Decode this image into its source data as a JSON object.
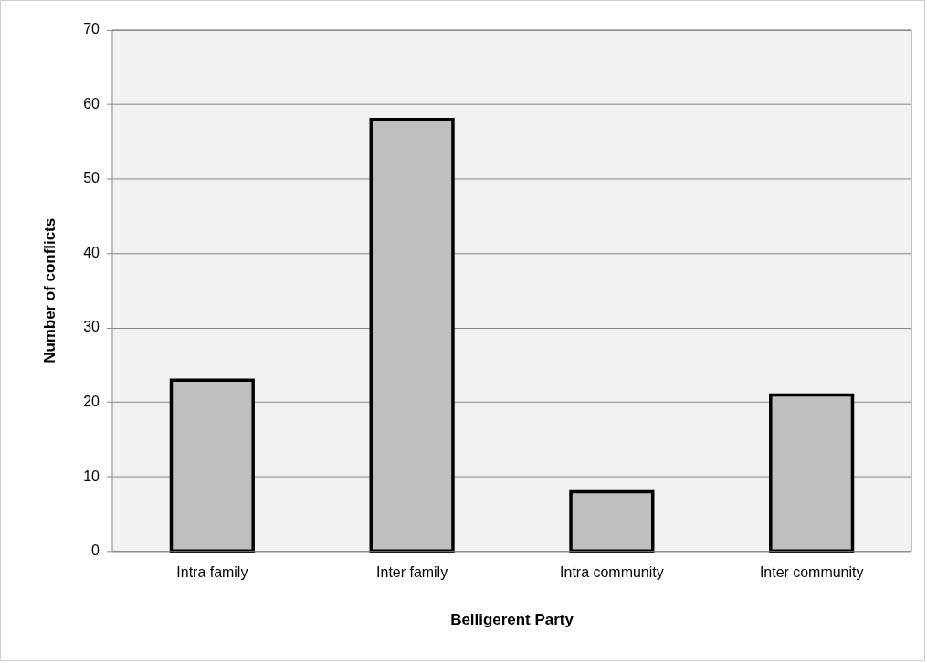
{
  "chart_data": {
    "type": "bar",
    "xlabel": "Belligerent Party",
    "ylabel": "Number of conflicts",
    "categories": [
      "Intra family",
      "Inter family",
      "Intra community",
      "Inter community"
    ],
    "values": [
      23,
      58,
      8,
      21
    ],
    "color": "#bfbfbf",
    "ylim": [
      0,
      70
    ],
    "yticks": [
      0,
      10,
      20,
      30,
      40,
      50,
      60,
      70
    ],
    "grid": "y"
  }
}
